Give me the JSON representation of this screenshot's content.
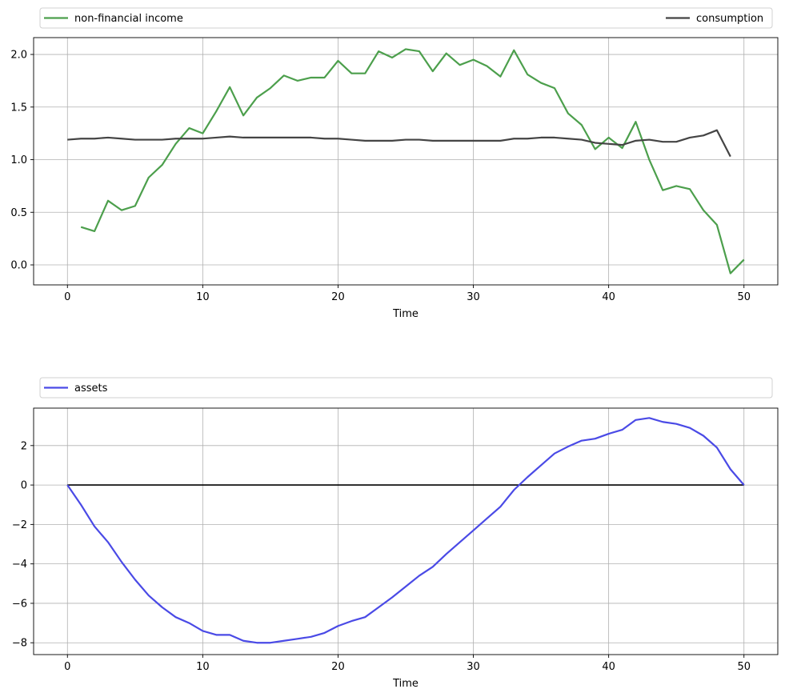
{
  "chart_data": [
    {
      "type": "line",
      "xlabel": "Time",
      "ylabel": "",
      "xlim": [
        -2.5,
        52.5
      ],
      "ylim": [
        -0.19,
        2.16
      ],
      "xticks": [
        0,
        10,
        20,
        30,
        40,
        50
      ],
      "yticks": [
        0.0,
        0.5,
        1.0,
        1.5,
        2.0
      ],
      "ytick_labels": [
        "0.0",
        "0.5",
        "1.0",
        "1.5",
        "2.0"
      ],
      "grid": true,
      "legend_placement": "above",
      "series": [
        {
          "name": "non-financial income",
          "color": "#4c9f4c",
          "x": [
            1,
            2,
            3,
            4,
            5,
            6,
            7,
            8,
            9,
            10,
            11,
            12,
            13,
            14,
            15,
            16,
            17,
            18,
            19,
            20,
            21,
            22,
            23,
            24,
            25,
            26,
            27,
            28,
            29,
            30,
            31,
            32,
            33,
            34,
            35,
            36,
            37,
            38,
            39,
            40,
            41,
            42,
            43,
            44,
            45,
            46,
            47,
            48,
            49,
            50
          ],
          "values": [
            0.36,
            0.32,
            0.61,
            0.52,
            0.56,
            0.83,
            0.95,
            1.15,
            1.3,
            1.25,
            1.46,
            1.69,
            1.42,
            1.59,
            1.68,
            1.8,
            1.75,
            1.78,
            1.78,
            1.94,
            1.82,
            1.82,
            2.03,
            1.97,
            2.05,
            2.03,
            1.84,
            2.01,
            1.9,
            1.95,
            1.89,
            1.79,
            2.04,
            1.81,
            1.73,
            1.68,
            1.44,
            1.33,
            1.1,
            1.21,
            1.11,
            1.36,
            1.0,
            0.71,
            0.75,
            0.72,
            0.52,
            0.38,
            -0.08,
            0.05
          ]
        },
        {
          "name": "consumption",
          "color": "#444444",
          "x": [
            0,
            1,
            2,
            3,
            4,
            5,
            6,
            7,
            8,
            9,
            10,
            11,
            12,
            13,
            14,
            15,
            16,
            17,
            18,
            19,
            20,
            21,
            22,
            23,
            24,
            25,
            26,
            27,
            28,
            29,
            30,
            31,
            32,
            33,
            34,
            35,
            36,
            37,
            38,
            39,
            40,
            41,
            42,
            43,
            44,
            45,
            46,
            47,
            48,
            49
          ],
          "values": [
            1.19,
            1.2,
            1.2,
            1.21,
            1.2,
            1.19,
            1.19,
            1.19,
            1.2,
            1.2,
            1.2,
            1.21,
            1.22,
            1.21,
            1.21,
            1.21,
            1.21,
            1.21,
            1.21,
            1.2,
            1.2,
            1.19,
            1.18,
            1.18,
            1.18,
            1.19,
            1.19,
            1.18,
            1.18,
            1.18,
            1.18,
            1.18,
            1.18,
            1.2,
            1.2,
            1.21,
            1.21,
            1.2,
            1.19,
            1.16,
            1.15,
            1.14,
            1.18,
            1.19,
            1.17,
            1.17,
            1.21,
            1.23,
            1.28,
            1.03
          ]
        }
      ]
    },
    {
      "type": "line",
      "xlabel": "Time",
      "ylabel": "",
      "xlim": [
        -2.5,
        52.5
      ],
      "ylim": [
        -8.6,
        3.9
      ],
      "xticks": [
        0,
        10,
        20,
        30,
        40,
        50
      ],
      "yticks": [
        -8,
        -6,
        -4,
        -2,
        0,
        2
      ],
      "ytick_labels": [
        "−8",
        "−6",
        "−4",
        "−2",
        "0",
        "2"
      ],
      "grid": true,
      "legend_placement": "above",
      "zero_line": {
        "color": "#000000"
      },
      "series": [
        {
          "name": "assets",
          "color": "#4a4ae6",
          "x": [
            0,
            1,
            2,
            3,
            4,
            5,
            6,
            7,
            8,
            9,
            10,
            11,
            12,
            13,
            14,
            15,
            16,
            17,
            18,
            19,
            20,
            21,
            22,
            23,
            24,
            25,
            26,
            27,
            28,
            29,
            30,
            31,
            32,
            33,
            34,
            35,
            36,
            37,
            38,
            39,
            40,
            41,
            42,
            43,
            44,
            45,
            46,
            47,
            48,
            49,
            50
          ],
          "values": [
            0.0,
            -1.0,
            -2.1,
            -2.9,
            -3.9,
            -4.8,
            -5.6,
            -6.2,
            -6.7,
            -7.0,
            -7.4,
            -7.6,
            -7.6,
            -7.9,
            -8.0,
            -8.0,
            -7.9,
            -7.8,
            -7.7,
            -7.5,
            -7.15,
            -6.9,
            -6.7,
            -6.2,
            -5.7,
            -5.15,
            -4.6,
            -4.15,
            -3.5,
            -2.9,
            -2.3,
            -1.7,
            -1.1,
            -0.25,
            0.4,
            1.0,
            1.6,
            1.95,
            2.25,
            2.35,
            2.6,
            2.8,
            3.3,
            3.4,
            3.2,
            3.1,
            2.9,
            2.5,
            1.9,
            0.8,
            0.0
          ]
        }
      ]
    }
  ]
}
